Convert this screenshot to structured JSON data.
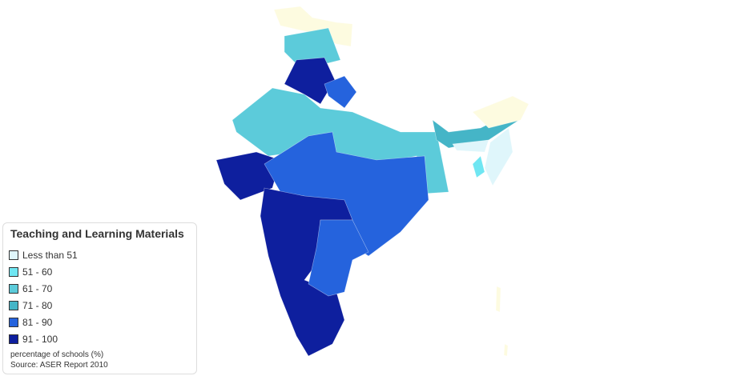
{
  "legend": {
    "title": "Teaching and Learning Materials",
    "items": [
      {
        "label": "Less than 51",
        "color": "#dff6fb"
      },
      {
        "label": "51 - 60",
        "color": "#6fe6f2"
      },
      {
        "label": "61 - 70",
        "color": "#5ccbda"
      },
      {
        "label": "71 - 80",
        "color": "#45b5c7"
      },
      {
        "label": "81 - 90",
        "color": "#2563dd"
      },
      {
        "label": "91 - 100",
        "color": "#0e1f9e"
      }
    ],
    "notes": [
      "percentage of schools (%)",
      "Source: ASER Report 2010"
    ]
  }
}
